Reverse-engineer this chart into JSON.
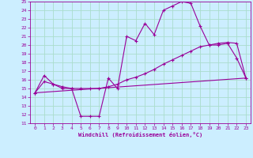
{
  "xlabel": "Windchill (Refroidissement éolien,°C)",
  "bg_color": "#cceeff",
  "line_color": "#990099",
  "grid_color": "#aaddcc",
  "xlim": [
    -0.5,
    23.5
  ],
  "ylim": [
    11,
    25
  ],
  "xticks": [
    0,
    1,
    2,
    3,
    4,
    5,
    6,
    7,
    8,
    9,
    10,
    11,
    12,
    13,
    14,
    15,
    16,
    17,
    18,
    19,
    20,
    21,
    22,
    23
  ],
  "yticks": [
    11,
    12,
    13,
    14,
    15,
    16,
    17,
    18,
    19,
    20,
    21,
    22,
    23,
    24,
    25
  ],
  "series1_x": [
    0,
    1,
    2,
    3,
    4,
    5,
    6,
    7,
    8,
    9,
    10,
    11,
    12,
    13,
    14,
    15,
    16,
    17,
    18,
    19,
    20,
    21,
    22,
    23
  ],
  "series1_y": [
    14.5,
    16.5,
    15.5,
    15.0,
    15.0,
    11.8,
    11.8,
    11.8,
    16.2,
    15.0,
    21.0,
    20.5,
    22.5,
    21.2,
    24.0,
    24.5,
    25.0,
    24.8,
    22.2,
    20.0,
    20.0,
    20.2,
    18.5,
    16.2
  ],
  "series2_x": [
    0,
    1,
    2,
    3,
    4,
    5,
    6,
    7,
    8,
    9,
    10,
    11,
    12,
    13,
    14,
    15,
    16,
    17,
    18,
    19,
    20,
    21,
    22,
    23
  ],
  "series2_y": [
    14.5,
    15.8,
    15.5,
    15.2,
    15.0,
    15.0,
    15.0,
    15.0,
    15.2,
    15.5,
    16.0,
    16.3,
    16.7,
    17.2,
    17.8,
    18.3,
    18.8,
    19.3,
    19.8,
    20.0,
    20.2,
    20.3,
    20.2,
    16.2
  ],
  "series3_x": [
    0,
    23
  ],
  "series3_y": [
    14.5,
    16.2
  ]
}
